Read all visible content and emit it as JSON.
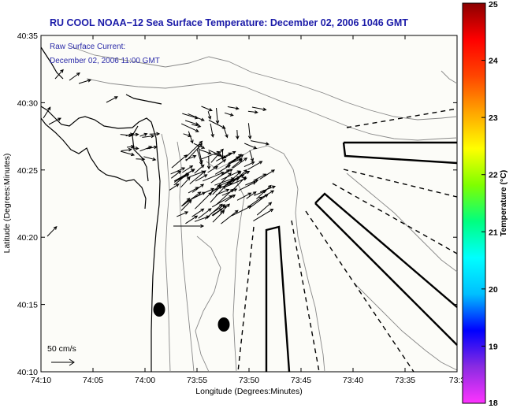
{
  "title": "RU COOL  NOAA−12  Sea Surface Temperature:  December 02, 2006 1046 GMT",
  "inset": {
    "line1": "Raw Surface Current:",
    "line2": "December 02, 2006 11:00 GMT"
  },
  "x_axis": {
    "label": "Longitude (Degrees:Minutes)",
    "ticks": [
      "74:10",
      "74:05",
      "74:00",
      "73:55",
      "73:50",
      "73:45",
      "73:40",
      "73:35",
      "73:3"
    ]
  },
  "y_axis": {
    "label": "Latitude (Degrees:Minutes)",
    "ticks": [
      "40:35",
      "40:30",
      "40:25",
      "40:20",
      "40:15",
      "40:10"
    ]
  },
  "scale_label": "50 cm/s",
  "colorbar": {
    "label": "Temperature (°C)",
    "ticks": [
      "25",
      "24",
      "23",
      "22",
      "21",
      "20",
      "19",
      "18"
    ],
    "min": 18,
    "max": 25,
    "colors": [
      "#ff33ff",
      "#8a2be2",
      "#0000ff",
      "#00bfff",
      "#00ffff",
      "#00ff80",
      "#7fff00",
      "#ffff00",
      "#ffa500",
      "#ff4500",
      "#ff0000",
      "#8b0000"
    ]
  },
  "markers": [
    {
      "name": "buoy-marker-west"
    },
    {
      "name": "buoy-marker-east"
    }
  ]
}
